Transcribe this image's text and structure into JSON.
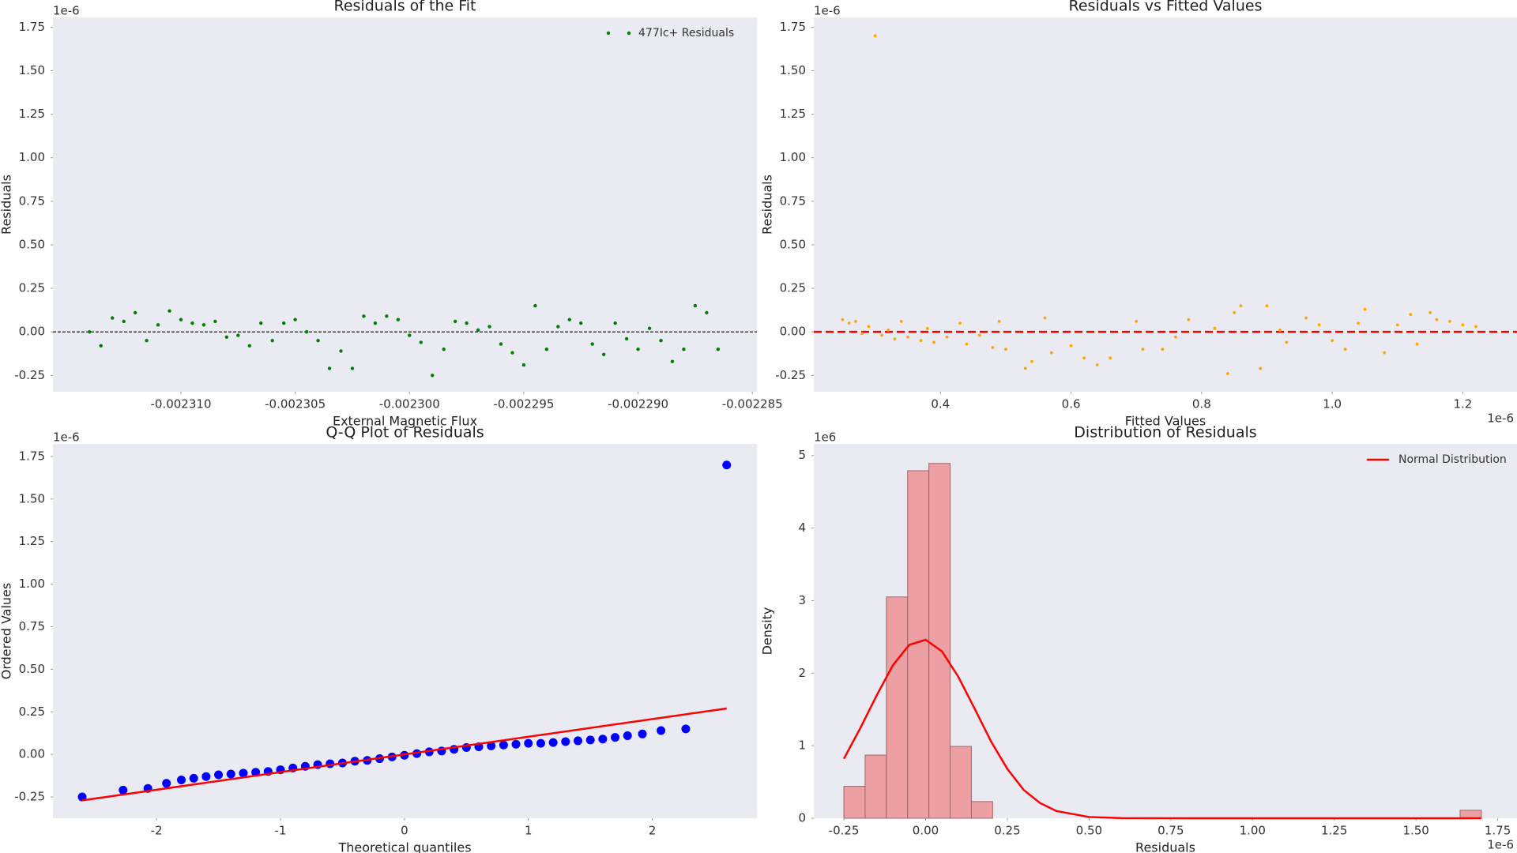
{
  "chart_data": [
    {
      "type": "scatter",
      "title": "Residuals of the Fit",
      "xlabel": "External Magnetic Flux",
      "ylabel": "Residuals",
      "y_offset": "1e-6",
      "xlim": [
        -0.0023156,
        -0.0022848
      ],
      "ylim": [
        -0.344,
        1.806
      ],
      "xticks": [
        {
          "value": -0.00231,
          "label": "-0.002310"
        },
        -0.002305,
        {
          "value": -0.0023,
          "label": "-0.002300"
        },
        -0.002295,
        {
          "value": -0.00229,
          "label": "-0.002290"
        },
        -0.002285
      ],
      "yticks": [
        -0.25,
        {
          "value": 0,
          "label": "0.00"
        },
        0.25,
        {
          "value": 0.5,
          "label": "0.50"
        },
        0.75,
        {
          "value": 1,
          "label": "1.00"
        },
        1.25,
        {
          "value": 1.5,
          "label": "1.50"
        },
        1.75
      ],
      "reference_line": {
        "value": 0,
        "color": "black",
        "style": "dashed"
      },
      "legend": "upper right",
      "series": [
        {
          "name": "477Ic+ Residuals",
          "color": "green",
          "x": [
            -0.002314,
            -0.0023135,
            -0.002313,
            -0.0023125,
            -0.002312,
            -0.0023115,
            -0.002311,
            -0.0023105,
            -0.00231,
            -0.0023095,
            -0.002309,
            -0.0023085,
            -0.002308,
            -0.0023075,
            -0.002307,
            -0.0023065,
            -0.002306,
            -0.0023055,
            -0.002305,
            -0.0023045,
            -0.002304,
            -0.0023035,
            -0.002303,
            -0.0023025,
            -0.002302,
            -0.0023015,
            -0.002301,
            -0.0023005,
            -0.0023,
            -0.0022995,
            -0.002299,
            -0.0022985,
            -0.002298,
            -0.0022975,
            -0.002297,
            -0.0022965,
            -0.002296,
            -0.0022955,
            -0.002295,
            -0.0022945,
            -0.002294,
            -0.0022935,
            -0.002293,
            -0.0022925,
            -0.002292,
            -0.0022915,
            -0.002291,
            -0.0022905,
            -0.00229,
            -0.0022895,
            -0.002289,
            -0.0022885,
            -0.002288,
            -0.0022875,
            -0.002287,
            -0.0022865
          ],
          "values": [
            0.0,
            -0.08,
            0.08,
            0.06,
            0.11,
            -0.05,
            0.04,
            0.12,
            0.07,
            0.05,
            0.04,
            0.06,
            -0.03,
            -0.02,
            -0.08,
            0.05,
            -0.05,
            0.05,
            0.07,
            0.0,
            -0.05,
            -0.21,
            -0.11,
            -0.21,
            0.09,
            0.05,
            0.09,
            0.07,
            -0.02,
            -0.06,
            -0.25,
            -0.1,
            0.06,
            0.05,
            0.01,
            0.03,
            -0.07,
            -0.12,
            -0.19,
            0.15,
            -0.1,
            0.03,
            0.07,
            0.05,
            -0.07,
            -0.13,
            0.05,
            -0.04,
            -0.1,
            0.02,
            -0.05,
            -0.17,
            -0.1,
            0.15,
            0.11,
            -0.1
          ]
        }
      ]
    },
    {
      "type": "scatter",
      "title": "Residuals vs Fitted Values",
      "xlabel": "Fitted Values",
      "ylabel": "Residuals",
      "y_offset": "1e-6",
      "x_offset": "1e-6",
      "xlim": [
        0.206,
        1.283
      ],
      "ylim": [
        -0.344,
        1.806
      ],
      "xticks": [
        0.4,
        0.6,
        0.8,
        {
          "value": 1,
          "label": "1.0"
        },
        1.2
      ],
      "yticks": [
        -0.25,
        {
          "value": 0,
          "label": "0.00"
        },
        0.25,
        {
          "value": 0.5,
          "label": "0.50"
        },
        0.75,
        {
          "value": 1,
          "label": "1.00"
        },
        1.25,
        {
          "value": 1.5,
          "label": "1.50"
        },
        1.75
      ],
      "reference_line": {
        "value": 0,
        "color": "red",
        "style": "dashed"
      },
      "series": [
        {
          "color": "orange",
          "x": [
            0.25,
            0.26,
            0.27,
            0.28,
            0.29,
            0.3,
            0.31,
            0.32,
            0.33,
            0.34,
            0.35,
            0.37,
            0.38,
            0.39,
            0.41,
            0.43,
            0.44,
            0.46,
            0.48,
            0.49,
            0.5,
            0.53,
            0.54,
            0.56,
            0.57,
            0.6,
            0.62,
            0.64,
            0.66,
            0.7,
            0.71,
            0.74,
            0.76,
            0.78,
            0.82,
            0.84,
            0.85,
            0.86,
            0.89,
            0.9,
            0.92,
            0.93,
            0.96,
            0.98,
            1.0,
            1.02,
            1.04,
            1.05,
            1.08,
            1.1,
            1.12,
            1.13,
            1.15,
            1.16,
            1.18,
            1.2,
            1.22
          ],
          "values": [
            0.07,
            0.05,
            0.06,
            -0.01,
            0.03,
            1.7,
            -0.02,
            0.01,
            -0.04,
            0.06,
            -0.03,
            -0.05,
            0.02,
            -0.06,
            -0.03,
            0.05,
            -0.07,
            -0.02,
            -0.09,
            0.06,
            -0.1,
            -0.21,
            -0.17,
            0.08,
            -0.12,
            -0.08,
            -0.15,
            -0.19,
            -0.15,
            0.06,
            -0.1,
            -0.1,
            -0.03,
            0.07,
            0.02,
            -0.24,
            0.11,
            0.15,
            -0.21,
            0.15,
            0.01,
            -0.06,
            0.08,
            0.04,
            -0.05,
            -0.1,
            0.05,
            0.13,
            -0.12,
            0.04,
            0.1,
            -0.07,
            0.11,
            0.07,
            0.06,
            0.04,
            0.03
          ]
        }
      ]
    },
    {
      "type": "scatter",
      "title": "Q-Q Plot of Residuals",
      "xlabel": "Theoretical quantiles",
      "ylabel": "Ordered Values",
      "y_offset": "1e-6",
      "xlim": [
        -2.836,
        2.844
      ],
      "ylim": [
        -0.375,
        1.824
      ],
      "xticks": [
        -2,
        -1,
        0,
        1,
        2
      ],
      "yticks": [
        -0.25,
        {
          "value": 0,
          "label": "0.00"
        },
        0.25,
        {
          "value": 0.5,
          "label": "0.50"
        },
        0.75,
        {
          "value": 1,
          "label": "1.00"
        },
        1.25,
        {
          "value": 1.5,
          "label": "1.50"
        },
        1.75
      ],
      "series": [
        {
          "color": "blue",
          "x": [
            -2.6,
            -2.27,
            -2.07,
            -1.92,
            -1.8,
            -1.7,
            -1.6,
            -1.5,
            -1.4,
            -1.3,
            -1.2,
            -1.1,
            -1.0,
            -0.9,
            -0.8,
            -0.7,
            -0.6,
            -0.5,
            -0.4,
            -0.3,
            -0.2,
            -0.1,
            0,
            0.1,
            0.2,
            0.3,
            0.4,
            0.5,
            0.6,
            0.7,
            0.8,
            0.9,
            1.0,
            1.1,
            1.2,
            1.3,
            1.4,
            1.5,
            1.6,
            1.7,
            1.8,
            1.92,
            2.07,
            2.27,
            2.6
          ],
          "values": [
            -0.25,
            -0.21,
            -0.2,
            -0.17,
            -0.15,
            -0.14,
            -0.13,
            -0.12,
            -0.115,
            -0.11,
            -0.105,
            -0.1,
            -0.09,
            -0.08,
            -0.07,
            -0.06,
            -0.055,
            -0.05,
            -0.04,
            -0.035,
            -0.025,
            -0.015,
            -0.005,
            0.005,
            0.015,
            0.02,
            0.03,
            0.04,
            0.045,
            0.05,
            0.055,
            0.06,
            0.065,
            0.065,
            0.07,
            0.075,
            0.08,
            0.085,
            0.09,
            0.1,
            0.11,
            0.12,
            0.14,
            0.15,
            1.7
          ]
        },
        {
          "color": "red",
          "mark": "line",
          "x": [
            -2.6,
            2.6
          ],
          "values": [
            -0.27,
            0.27
          ]
        }
      ]
    },
    {
      "type": "histogram",
      "title": "Distribution of Residuals",
      "xlabel": "Residuals",
      "ylabel": "Density",
      "y_offset": "1e6",
      "x_offset": "1e-6",
      "xlim": [
        -0.342,
        1.809
      ],
      "ylim": [
        0,
        5.16
      ],
      "xticks": [
        -0.25,
        {
          "value": 0,
          "label": "0.00"
        },
        0.25,
        {
          "value": 0.5,
          "label": "0.50"
        },
        0.75,
        {
          "value": 1,
          "label": "1.00"
        },
        1.25,
        {
          "value": 1.5,
          "label": "1.50"
        },
        1.75
      ],
      "yticks": [
        0,
        1,
        2,
        3,
        4,
        5
      ],
      "color": "#eca0a3",
      "edgecolor": "#a06468",
      "bins": [
        -0.25,
        -0.185,
        -0.12,
        -0.055,
        0.01,
        0.075,
        0.14,
        0.205,
        0.27,
        0.335,
        0.4,
        0.465,
        0.53,
        0.595,
        0.66,
        0.725,
        0.79,
        0.855,
        0.92,
        0.985,
        1.05,
        1.115,
        1.18,
        1.245,
        1.31,
        1.375,
        1.44,
        1.505,
        1.57,
        1.635,
        1.7
      ],
      "values": [
        0.44,
        0.87,
        3.05,
        4.79,
        4.89,
        0.99,
        0.23,
        0,
        0,
        0,
        0,
        0,
        0,
        0,
        0,
        0,
        0,
        0,
        0,
        0,
        0,
        0,
        0,
        0,
        0,
        0,
        0,
        0,
        0,
        0.11
      ],
      "legend": "upper right",
      "series": [
        {
          "name": "Normal Distribution",
          "color": "red",
          "mark": "line",
          "x": [
            -0.25,
            -0.2,
            -0.15,
            -0.1,
            -0.05,
            0,
            0.05,
            0.1,
            0.15,
            0.2,
            0.25,
            0.3,
            0.35,
            0.4,
            0.5,
            0.6,
            0.8,
            1.2,
            1.7
          ],
          "values": [
            0.82,
            1.24,
            1.69,
            2.11,
            2.39,
            2.46,
            2.3,
            1.95,
            1.51,
            1.06,
            0.68,
            0.39,
            0.21,
            0.1,
            0.017,
            0.002,
            0,
            0,
            0
          ]
        }
      ]
    }
  ]
}
